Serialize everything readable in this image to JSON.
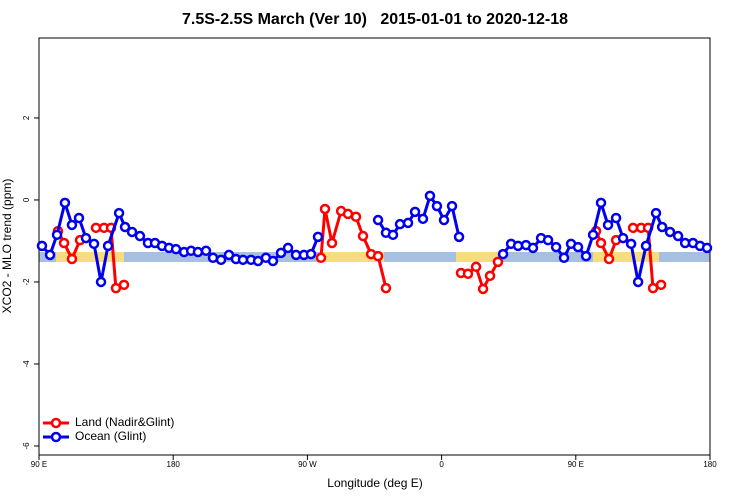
{
  "chart_data": {
    "type": "line",
    "title": "7.5S-2.5S March (Ver 10)   2015-01-01 to 2020-12-18",
    "x_label": "Longitude (deg E)",
    "y_label": "XCO2 - MLO trend (ppm)",
    "xlim": [
      90,
      540
    ],
    "ylim": [
      -6.22,
      3.95
    ],
    "xticks": [
      {
        "value": 90,
        "label": "90 E"
      },
      180,
      {
        "value": 270,
        "label": "90 W"
      },
      {
        "value": 360,
        "label": "0"
      },
      {
        "value": 450,
        "label": "90 E"
      },
      {
        "value": 540,
        "label": "180"
      }
    ],
    "yticks": [
      2,
      0,
      -2,
      -4,
      -6
    ],
    "legend": "bottom-left",
    "series": [
      {
        "name": "Land (Nadir&Glint)",
        "color": "#ff0000",
        "x": [
          102.7,
          106.8,
          112.1,
          117.5,
          null,
          128.2,
          133.6,
          138.3,
          141.6,
          147.0,
          null,
          279.1,
          281.8,
          286.5,
          292.6,
          297.2,
          302.6,
          307.3,
          312.7,
          317.4,
          322.7,
          null,
          373.0,
          377.7,
          383.1,
          387.8,
          392.5,
          397.8,
          null,
          463.6,
          466.9,
          472.3,
          477.0,
          null,
          488.4,
          493.8,
          498.5,
          501.8,
          507.2
        ],
        "values": [
          -0.76,
          -1.05,
          -1.44,
          -0.98,
          null,
          -0.68,
          -0.68,
          -0.68,
          -2.15,
          -2.07,
          null,
          -1.41,
          -0.22,
          -1.05,
          -0.27,
          -0.34,
          -0.41,
          -0.88,
          -1.32,
          -1.37,
          -2.15,
          null,
          -1.78,
          -1.8,
          -1.63,
          -2.17,
          -1.85,
          -1.51,
          null,
          -0.76,
          -1.05,
          -1.44,
          -0.98,
          null,
          -0.68,
          -0.68,
          -0.68,
          -2.15,
          -2.07
        ]
      },
      {
        "name": "Ocean (Glint)",
        "color": "#0000ee",
        "x": [
          92.0,
          97.4,
          102.1,
          107.4,
          112.1,
          116.8,
          121.5,
          126.9,
          131.6,
          136.3,
          143.7,
          147.7,
          152.4,
          157.7,
          163.1,
          167.8,
          172.5,
          177.2,
          181.9,
          187.3,
          192.0,
          196.6,
          202.0,
          206.7,
          212.1,
          217.4,
          222.1,
          226.8,
          232.2,
          236.9,
          242.2,
          246.9,
          252.3,
          257.0,
          262.4,
          267.7,
          272.4,
          277.1,
          null,
          317.4,
          322.7,
          327.4,
          332.1,
          337.5,
          342.2,
          347.5,
          352.2,
          356.9,
          361.6,
          367.0,
          371.7,
          null,
          401.2,
          406.6,
          411.3,
          416.6,
          421.3,
          426.7,
          431.4,
          436.8,
          442.1,
          446.8,
          451.5,
          456.9,
          461.6,
          466.9,
          471.6,
          477.0,
          481.7,
          487.1,
          491.8,
          497.1,
          503.8,
          507.9,
          513.2,
          518.6,
          523.3,
          528.6,
          533.3,
          538.0
        ],
        "values": [
          -1.12,
          -1.34,
          -0.85,
          -0.07,
          -0.61,
          -0.44,
          -0.93,
          -1.07,
          -2.0,
          -1.12,
          -0.32,
          -0.66,
          -0.78,
          -0.88,
          -1.05,
          -1.05,
          -1.12,
          -1.17,
          -1.2,
          -1.27,
          -1.24,
          -1.27,
          -1.24,
          -1.41,
          -1.46,
          -1.34,
          -1.44,
          -1.46,
          -1.46,
          -1.49,
          -1.41,
          -1.49,
          -1.29,
          -1.17,
          -1.34,
          -1.34,
          -1.32,
          -0.9,
          null,
          -0.49,
          -0.8,
          -0.85,
          -0.59,
          -0.56,
          -0.29,
          -0.46,
          0.1,
          -0.15,
          -0.49,
          -0.15,
          -0.9,
          null,
          -1.32,
          -1.07,
          -1.12,
          -1.1,
          -1.17,
          -0.93,
          -0.98,
          -1.15,
          -1.41,
          -1.07,
          -1.15,
          -1.37,
          -0.85,
          -0.07,
          -0.61,
          -0.44,
          -0.93,
          -1.07,
          -2.0,
          -1.12,
          -0.32,
          -0.66,
          -0.78,
          -0.88,
          -1.05,
          -1.05,
          -1.12,
          -1.17
        ]
      }
    ]
  }
}
